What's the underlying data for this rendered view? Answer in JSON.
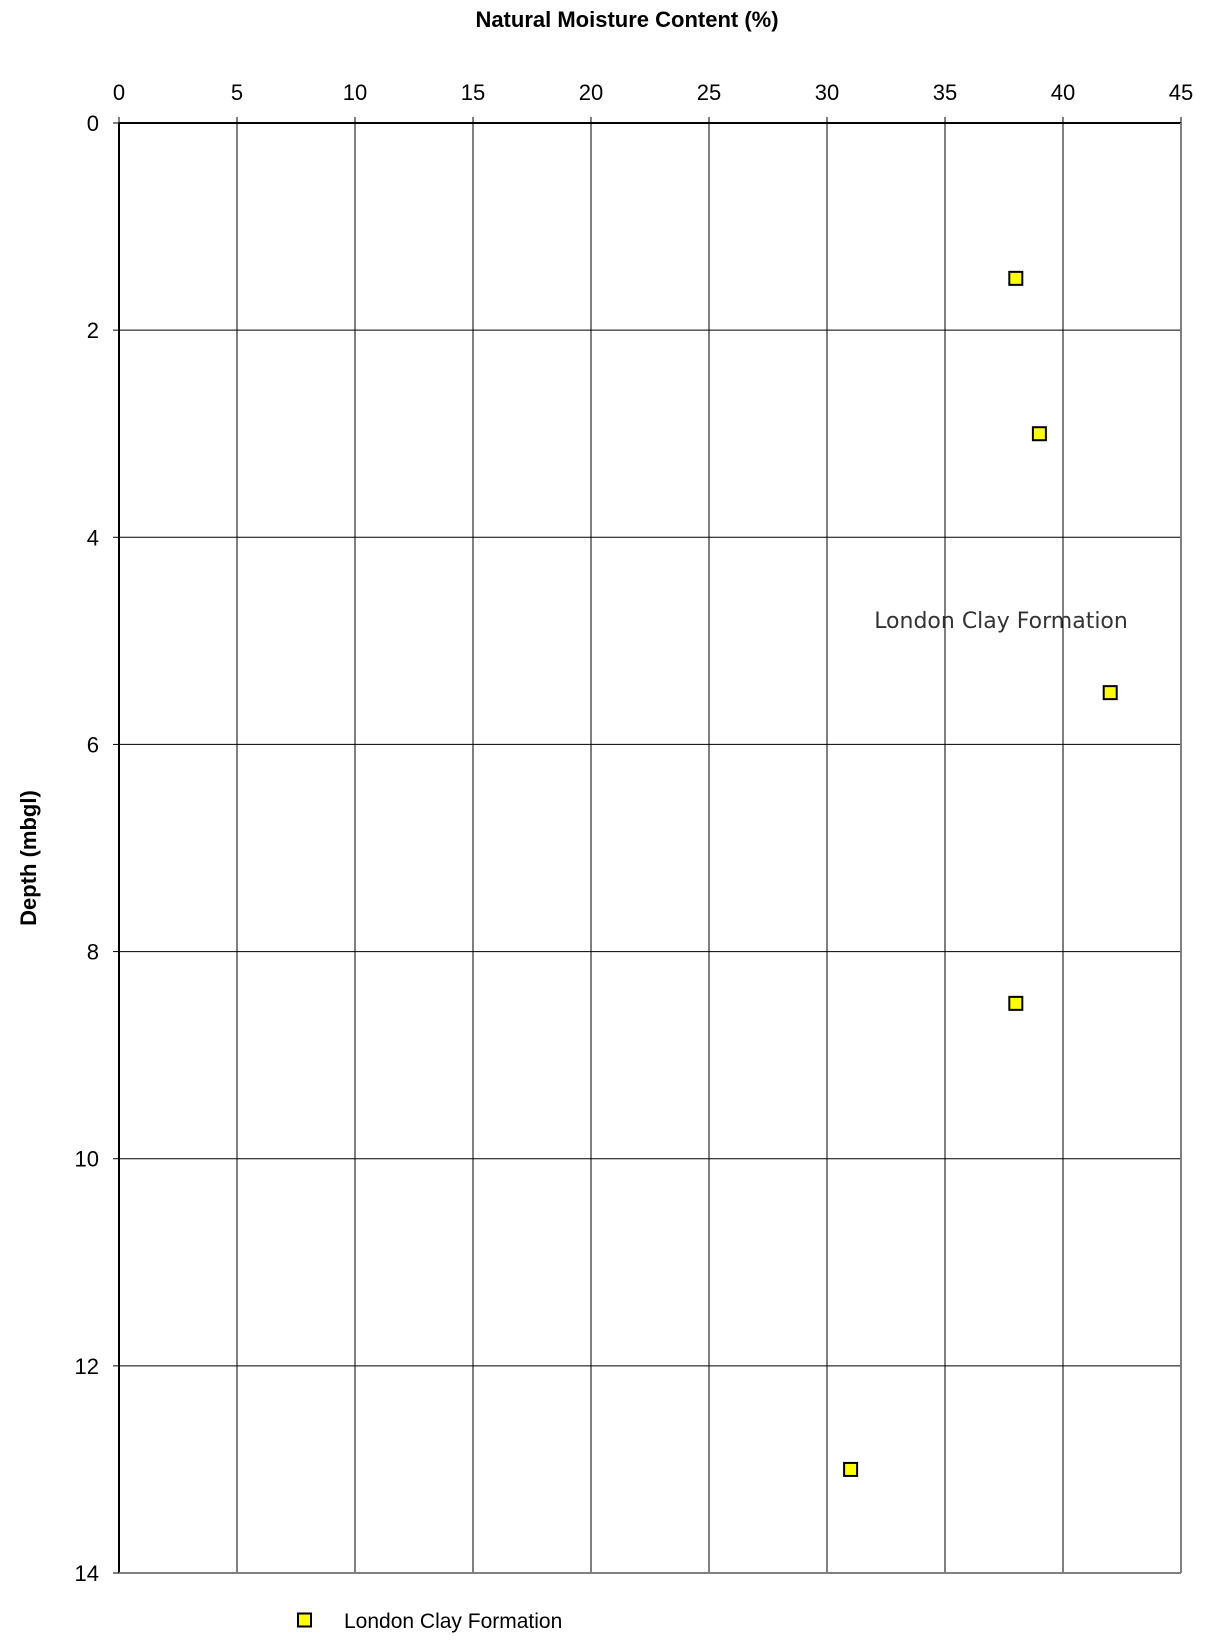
{
  "chart_data": {
    "type": "scatter",
    "title": "Natural Moisture Content (%)",
    "xlabel": "Natural Moisture Content (%)",
    "ylabel": "Depth (mbgl)",
    "xlim": [
      0,
      45
    ],
    "ylim": [
      0,
      14
    ],
    "y_inverted": true,
    "x_axis_position": "top",
    "grid": true,
    "x_ticks": [
      "0",
      "5",
      "10",
      "15",
      "20",
      "25",
      "30",
      "35",
      "40",
      "45"
    ],
    "y_ticks": [
      "0",
      "2",
      "4",
      "6",
      "8",
      "10",
      "12",
      "14"
    ],
    "series": [
      {
        "name": "London Clay Formation",
        "marker": "square",
        "color": "#ffff00",
        "edge_color": "#000000",
        "points": [
          {
            "x": 38,
            "y": 1.5
          },
          {
            "x": 39,
            "y": 3.0
          },
          {
            "x": 42,
            "y": 5.5
          },
          {
            "x": 38,
            "y": 8.5
          },
          {
            "x": 31,
            "y": 13.0
          }
        ]
      }
    ],
    "annotations": [
      {
        "text": "London Clay Formation",
        "x": 32,
        "y": 4.8
      }
    ],
    "legend": {
      "placement": "bottom",
      "entries": [
        "London Clay Formation"
      ]
    }
  }
}
